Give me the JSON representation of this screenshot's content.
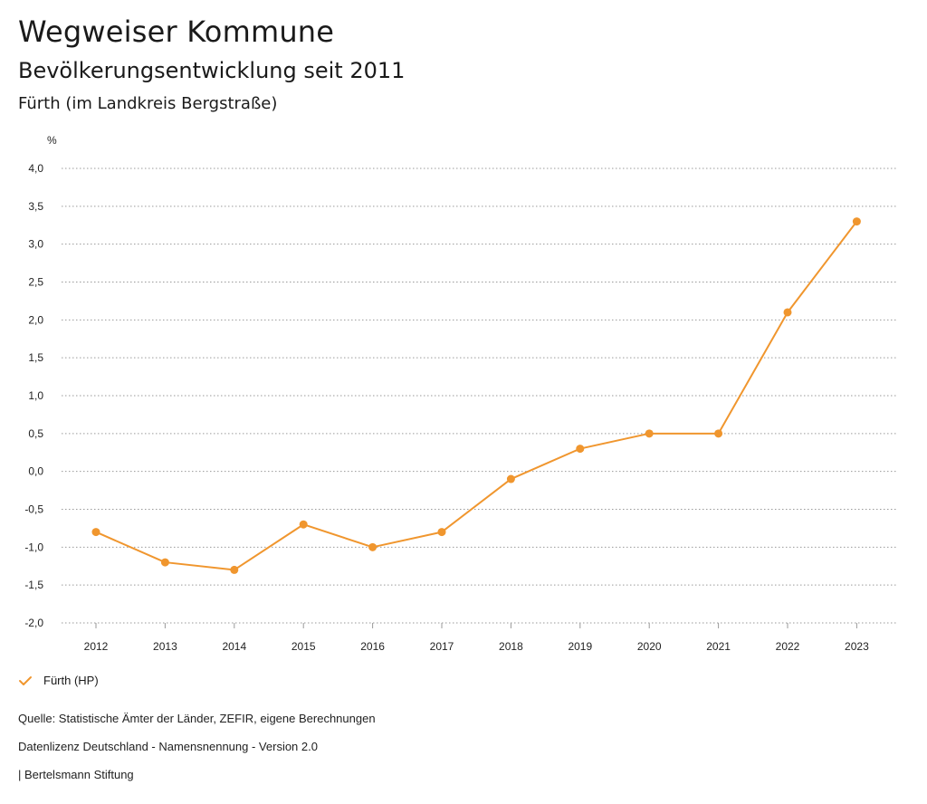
{
  "header": {
    "title": "Wegweiser Kommune",
    "subtitle": "Bevölkerungsentwicklung seit 2011",
    "place": "Fürth (im Landkreis Bergstraße)"
  },
  "chart_data": {
    "type": "line",
    "unit_label": "%",
    "ylim": [
      -2.0,
      4.0
    ],
    "ytick_step": 0.5,
    "ytick_labels": [
      "4,0",
      "3,5",
      "3,0",
      "2,5",
      "2,0",
      "1,5",
      "1,0",
      "0,5",
      "0,0",
      "-0,5",
      "-1,0",
      "-1,5",
      "-2,0"
    ],
    "categories": [
      "2012",
      "2013",
      "2014",
      "2015",
      "2016",
      "2017",
      "2018",
      "2019",
      "2020",
      "2021",
      "2022",
      "2023"
    ],
    "series": [
      {
        "name": "Fürth (HP)",
        "color": "#f0962e",
        "values": [
          -0.8,
          -1.2,
          -1.3,
          -0.7,
          -1.0,
          -0.8,
          -0.1,
          0.3,
          0.5,
          0.5,
          2.1,
          3.3
        ]
      }
    ],
    "grid": true,
    "legend_position": "bottom-left"
  },
  "legend": {
    "label": "Fürth (HP)"
  },
  "footer": {
    "source": "Quelle: Statistische Ämter der Länder, ZEFIR, eigene Berechnungen",
    "license": "Datenlizenz Deutschland - Namensnennung - Version 2.0",
    "publisher": "| Bertelsmann Stiftung"
  }
}
